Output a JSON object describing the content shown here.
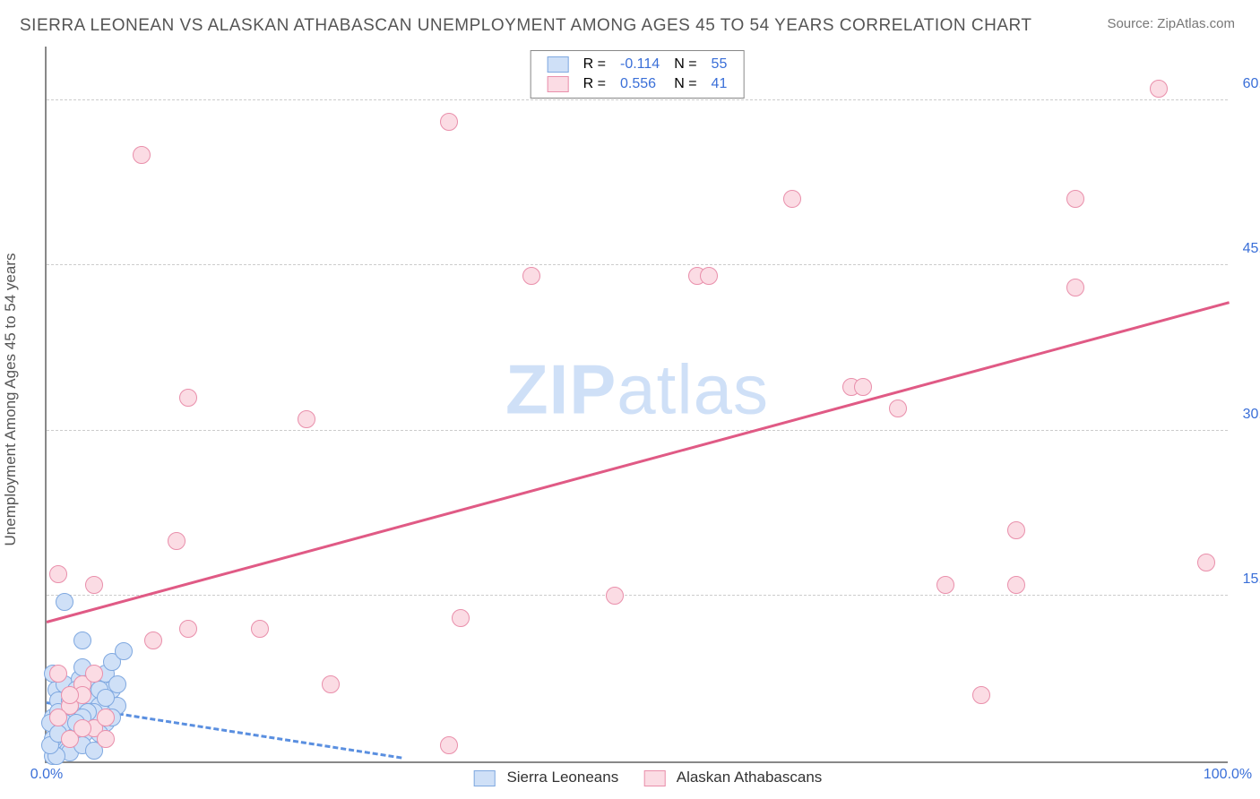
{
  "title": "SIERRA LEONEAN VS ALASKAN ATHABASCAN UNEMPLOYMENT AMONG AGES 45 TO 54 YEARS CORRELATION CHART",
  "source": "Source: ZipAtlas.com",
  "ylabel": "Unemployment Among Ages 45 to 54 years",
  "watermark_a": "ZIP",
  "watermark_b": "atlas",
  "chart": {
    "type": "scatter",
    "xlim": [
      0,
      100
    ],
    "ylim": [
      0,
      65
    ],
    "yticks": [
      15,
      30,
      45,
      60
    ],
    "ytick_labels": [
      "15.0%",
      "30.0%",
      "45.0%",
      "60.0%"
    ],
    "xtick_min": "0.0%",
    "xtick_max": "100.0%",
    "grid_color": "#cccccc",
    "axis_color": "#888888",
    "background": "#ffffff",
    "marker_radius": 10,
    "series": [
      {
        "name": "Sierra Leoneans",
        "fill": "#cfe0f7",
        "stroke": "#7fa8e0",
        "R": "-0.114",
        "N": "55",
        "trend": {
          "x0": 0,
          "y0": 5.2,
          "x1": 30,
          "y1": 0.2,
          "width": 3,
          "dashed": true,
          "color": "#5a8fe0"
        },
        "points": [
          [
            0.5,
            0.5
          ],
          [
            0.8,
            1.0
          ],
          [
            1.0,
            1.5
          ],
          [
            1.2,
            2.0
          ],
          [
            1.5,
            2.5
          ],
          [
            1.0,
            3.0
          ],
          [
            2.0,
            3.5
          ],
          [
            0.5,
            4.0
          ],
          [
            2.5,
            4.5
          ],
          [
            1.8,
            5.0
          ],
          [
            3.0,
            5.5
          ],
          [
            2.0,
            6.0
          ],
          [
            0.8,
            6.5
          ],
          [
            3.5,
            6.0
          ],
          [
            1.5,
            7.0
          ],
          [
            2.8,
            7.5
          ],
          [
            4.0,
            7.0
          ],
          [
            0.5,
            8.0
          ],
          [
            3.0,
            8.5
          ],
          [
            5.0,
            8.0
          ],
          [
            2.0,
            4.0
          ],
          [
            4.5,
            5.0
          ],
          [
            1.0,
            5.5
          ],
          [
            3.5,
            3.0
          ],
          [
            5.5,
            6.5
          ],
          [
            2.5,
            2.0
          ],
          [
            0.3,
            3.5
          ],
          [
            4.0,
            4.5
          ],
          [
            1.8,
            1.0
          ],
          [
            3.2,
            2.5
          ],
          [
            5.0,
            3.5
          ],
          [
            2.0,
            0.8
          ],
          [
            6.0,
            5.0
          ],
          [
            0.5,
            2.0
          ],
          [
            4.5,
            2.5
          ],
          [
            1.0,
            4.5
          ],
          [
            3.0,
            1.5
          ],
          [
            5.5,
            4.0
          ],
          [
            2.5,
            6.5
          ],
          [
            0.8,
            0.5
          ],
          [
            4.0,
            1.0
          ],
          [
            1.5,
            3.5
          ],
          [
            3.5,
            4.5
          ],
          [
            6.0,
            7.0
          ],
          [
            2.0,
            5.5
          ],
          [
            0.3,
            1.5
          ],
          [
            4.5,
            6.5
          ],
          [
            1.0,
            2.5
          ],
          [
            3.0,
            4.0
          ],
          [
            5.0,
            5.8
          ],
          [
            2.5,
            3.5
          ],
          [
            5.5,
            9.0
          ],
          [
            6.5,
            10.0
          ],
          [
            1.5,
            14.5
          ],
          [
            3.0,
            11.0
          ]
        ]
      },
      {
        "name": "Alaskan Athabascans",
        "fill": "#fbdce4",
        "stroke": "#e98fab",
        "R": "0.556",
        "N": "41",
        "trend": {
          "x0": 0,
          "y0": 12.5,
          "x1": 100,
          "y1": 41.5,
          "width": 3,
          "dashed": false,
          "color": "#e05a85"
        },
        "points": [
          [
            1,
            17
          ],
          [
            4,
            16
          ],
          [
            8,
            55
          ],
          [
            9,
            11
          ],
          [
            11,
            20
          ],
          [
            12,
            33
          ],
          [
            12,
            12
          ],
          [
            18,
            12
          ],
          [
            22,
            31
          ],
          [
            24,
            7
          ],
          [
            34,
            58
          ],
          [
            34,
            1.5
          ],
          [
            35,
            13
          ],
          [
            41,
            44
          ],
          [
            48,
            15
          ],
          [
            55,
            44
          ],
          [
            56,
            44
          ],
          [
            63,
            51
          ],
          [
            68,
            34
          ],
          [
            69,
            34
          ],
          [
            72,
            32
          ],
          [
            76,
            16
          ],
          [
            79,
            6
          ],
          [
            82,
            16
          ],
          [
            82,
            21
          ],
          [
            87,
            43
          ],
          [
            87,
            51
          ],
          [
            94,
            61
          ],
          [
            98,
            18
          ],
          [
            2,
            5
          ],
          [
            3,
            7
          ],
          [
            4,
            3
          ],
          [
            2,
            2
          ],
          [
            5,
            4
          ],
          [
            3,
            6
          ],
          [
            1,
            4
          ],
          [
            4,
            8
          ],
          [
            2,
            6
          ],
          [
            5,
            2
          ],
          [
            3,
            3
          ],
          [
            1,
            8
          ]
        ]
      }
    ]
  },
  "legend_top": {
    "r_label": "R =",
    "n_label": "N ="
  },
  "legend_bottom": {
    "a": "Sierra Leoneans",
    "b": "Alaskan Athabascans"
  }
}
